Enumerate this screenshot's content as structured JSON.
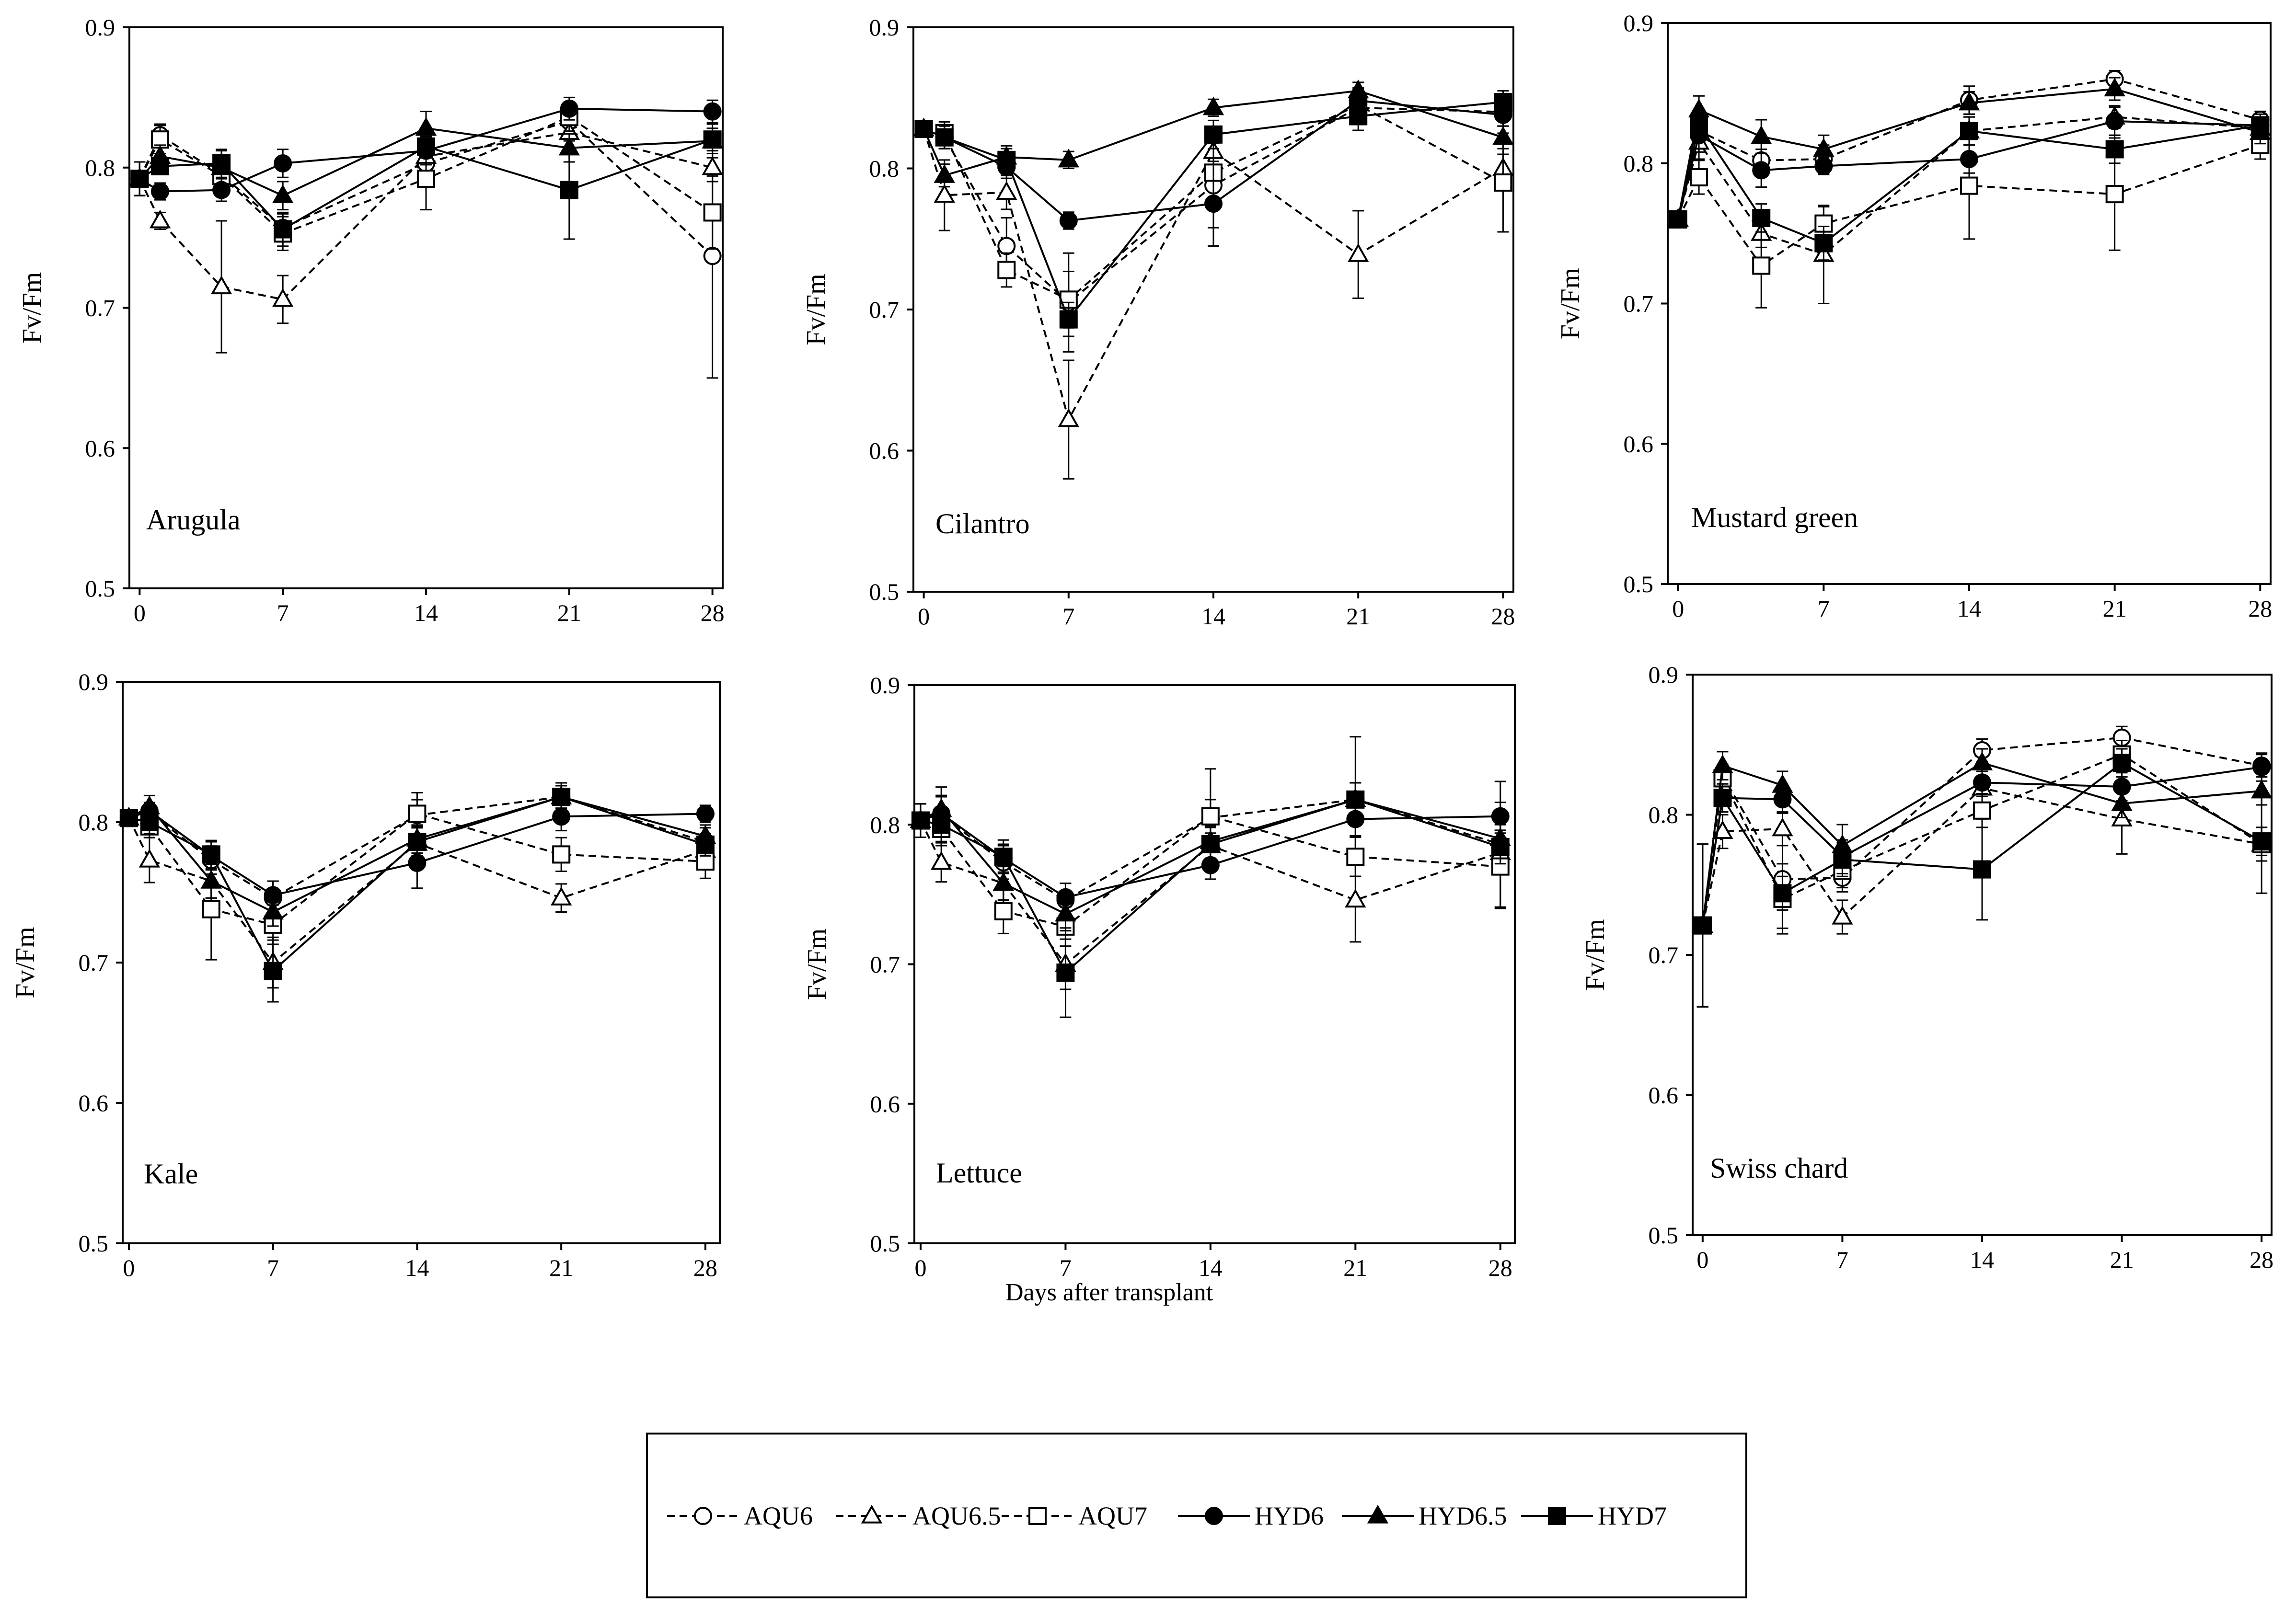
{
  "xlabel": "Days after transplant",
  "ylabel": "Fv/Fm",
  "legend": [
    {
      "name": "AQU6",
      "marker": "circle",
      "fill": "open",
      "dash": "dashed"
    },
    {
      "name": "AQU6.5",
      "marker": "triangle",
      "fill": "open",
      "dash": "dashed"
    },
    {
      "name": "AQU7",
      "marker": "square",
      "fill": "open",
      "dash": "dashed"
    },
    {
      "name": "HYD6",
      "marker": "circle",
      "fill": "solid",
      "dash": "solid"
    },
    {
      "name": "HYD6.5",
      "marker": "triangle",
      "fill": "solid",
      "dash": "solid"
    },
    {
      "name": "HYD7",
      "marker": "square",
      "fill": "solid",
      "dash": "solid"
    }
  ],
  "chart_data": [
    {
      "type": "line",
      "label": "Arugula",
      "x": [
        0,
        1,
        4,
        7,
        14,
        21,
        28
      ],
      "xticks": [
        0,
        7,
        14,
        21,
        28
      ],
      "xlim": [
        -0.5,
        28.5
      ],
      "yticks": [
        0.5,
        0.6,
        0.7,
        0.8,
        0.9
      ],
      "ylim": [
        0.5,
        0.9
      ],
      "series": [
        {
          "name": "AQU6",
          "values": [
            0.792,
            0.823,
            0.795,
            0.757,
            0.803,
            0.833,
            0.737
          ],
          "errors": [
            0.012,
            0.008,
            0.012,
            0.01,
            0.012,
            0.01,
            0.087
          ]
        },
        {
          "name": "AQU6.5",
          "values": [
            0.792,
            0.762,
            0.715,
            0.706,
            0.808,
            0.825,
            0.8
          ],
          "errors": [
            0.012,
            0.006,
            0.047,
            0.017,
            0.012,
            0.012,
            0.01
          ]
        },
        {
          "name": "AQU7",
          "values": [
            0.792,
            0.82,
            0.794,
            0.753,
            0.792,
            0.836,
            0.768
          ],
          "errors": [
            0.012,
            0.01,
            0.01,
            0.012,
            0.022,
            0.01,
            0.026
          ]
        },
        {
          "name": "HYD6",
          "values": [
            0.792,
            0.783,
            0.784,
            0.803,
            0.812,
            0.842,
            0.84
          ],
          "errors": [
            0.012,
            0.006,
            0.008,
            0.01,
            0.01,
            0.008,
            0.008
          ]
        },
        {
          "name": "HYD6.5",
          "values": [
            0.792,
            0.808,
            0.8,
            0.78,
            0.828,
            0.814,
            0.819
          ],
          "errors": [
            0.012,
            0.008,
            0.012,
            0.01,
            0.012,
            0.01,
            0.012
          ]
        },
        {
          "name": "HYD7",
          "values": [
            0.792,
            0.801,
            0.803,
            0.756,
            0.815,
            0.784,
            0.82
          ],
          "errors": [
            0.012,
            0.006,
            0.01,
            0.012,
            0.008,
            0.035,
            0.008
          ]
        }
      ]
    },
    {
      "type": "line",
      "label": "Cilantro",
      "x": [
        0,
        1,
        4,
        7,
        14,
        21,
        28
      ],
      "xticks": [
        0,
        7,
        14,
        21,
        28
      ],
      "xlim": [
        -0.5,
        28.5
      ],
      "yticks": [
        0.5,
        0.6,
        0.7,
        0.8,
        0.9
      ],
      "ylim": [
        0.5,
        0.9
      ],
      "series": [
        {
          "name": "AQU6",
          "values": [
            0.828,
            0.822,
            0.745,
            0.705,
            0.788,
            0.843,
            0.84
          ],
          "errors": [
            0.004,
            0.008,
            0.02,
            0.035,
            0.03,
            0.008,
            0.01
          ]
        },
        {
          "name": "AQU6.5",
          "values": [
            0.828,
            0.781,
            0.783,
            0.622,
            0.812,
            0.739,
            0.8
          ],
          "errors": [
            0.004,
            0.025,
            0.012,
            0.042,
            0.012,
            0.031,
            0.01
          ]
        },
        {
          "name": "AQU7",
          "values": [
            0.828,
            0.825,
            0.728,
            0.707,
            0.797,
            0.845,
            0.79
          ],
          "errors": [
            0.004,
            0.008,
            0.012,
            0.02,
            0.025,
            0.012,
            0.035
          ]
        },
        {
          "name": "HYD6",
          "values": [
            0.828,
            0.822,
            0.801,
            0.763,
            0.775,
            0.848,
            0.838
          ],
          "errors": [
            0.004,
            0.008,
            0.008,
            0.006,
            0.03,
            0.008,
            0.008
          ]
        },
        {
          "name": "HYD6.5",
          "values": [
            0.828,
            0.795,
            0.808,
            0.806,
            0.843,
            0.855,
            0.822
          ],
          "errors": [
            0.004,
            0.008,
            0.006,
            0.006,
            0.006,
            0.006,
            0.008
          ]
        },
        {
          "name": "HYD7",
          "values": [
            0.828,
            0.822,
            0.806,
            0.693,
            0.824,
            0.837,
            0.847
          ],
          "errors": [
            0.004,
            0.008,
            0.01,
            0.012,
            0.01,
            0.01,
            0.008
          ]
        }
      ]
    },
    {
      "type": "line",
      "label": "Mustard green",
      "x": [
        0,
        1,
        4,
        7,
        14,
        21,
        28
      ],
      "xticks": [
        0,
        7,
        14,
        21,
        28
      ],
      "xlim": [
        -0.5,
        28.5
      ],
      "yticks": [
        0.5,
        0.6,
        0.7,
        0.8,
        0.9
      ],
      "ylim": [
        0.5,
        0.9
      ],
      "series": [
        {
          "name": "AQU6",
          "values": [
            0.76,
            0.823,
            0.802,
            0.803,
            0.845,
            0.86,
            0.831
          ],
          "errors": [
            0.005,
            0.012,
            0.008,
            0.01,
            0.01,
            0.006,
            0.006
          ]
        },
        {
          "name": "AQU6.5",
          "values": [
            0.76,
            0.815,
            0.75,
            0.735,
            0.823,
            0.833,
            0.825
          ],
          "errors": [
            0.005,
            0.012,
            0.01,
            0.035,
            0.01,
            0.008,
            0.008
          ]
        },
        {
          "name": "AQU7",
          "values": [
            0.76,
            0.79,
            0.727,
            0.757,
            0.784,
            0.778,
            0.813
          ],
          "errors": [
            0.005,
            0.012,
            0.03,
            0.012,
            0.038,
            0.04,
            0.01
          ]
        },
        {
          "name": "HYD6",
          "values": [
            0.76,
            0.82,
            0.795,
            0.798,
            0.803,
            0.83,
            0.827
          ],
          "errors": [
            0.005,
            0.012,
            0.012,
            0.006,
            0.01,
            0.01,
            0.006
          ]
        },
        {
          "name": "HYD6.5",
          "values": [
            0.76,
            0.838,
            0.819,
            0.81,
            0.843,
            0.853,
            0.822
          ],
          "errors": [
            0.005,
            0.01,
            0.012,
            0.01,
            0.008,
            0.008,
            0.008
          ]
        },
        {
          "name": "HYD7",
          "values": [
            0.76,
            0.828,
            0.761,
            0.743,
            0.823,
            0.81,
            0.827
          ],
          "errors": [
            0.005,
            0.01,
            0.01,
            0.012,
            0.01,
            0.01,
            0.008
          ]
        }
      ]
    },
    {
      "type": "line",
      "label": "Kale",
      "x": [
        0,
        1,
        4,
        7,
        14,
        21,
        28
      ],
      "xticks": [
        0,
        7,
        14,
        21,
        28
      ],
      "xlim": [
        -0.3,
        28.7
      ],
      "yticks": [
        0.5,
        0.6,
        0.7,
        0.8,
        0.9
      ],
      "ylim": [
        0.5,
        0.9
      ],
      "series": [
        {
          "name": "AQU6",
          "values": [
            0.803,
            0.807,
            0.773,
            0.746,
            0.805,
            0.818,
            0.786
          ],
          "errors": [
            0.004,
            0.006,
            0.01,
            0.012,
            0.016,
            0.01,
            0.01
          ]
        },
        {
          "name": "AQU6.5",
          "values": [
            0.803,
            0.773,
            0.758,
            0.7,
            0.785,
            0.746,
            0.78
          ],
          "errors": [
            0.004,
            0.016,
            0.012,
            0.018,
            0.012,
            0.01,
            0.008
          ]
        },
        {
          "name": "AQU7",
          "values": [
            0.803,
            0.797,
            0.738,
            0.727,
            0.806,
            0.777,
            0.772
          ],
          "errors": [
            0.004,
            0.008,
            0.036,
            0.014,
            0.01,
            0.012,
            0.012
          ]
        },
        {
          "name": "HYD6",
          "values": [
            0.803,
            0.808,
            0.776,
            0.748,
            0.771,
            0.804,
            0.806
          ],
          "errors": [
            0.004,
            0.006,
            0.01,
            0.01,
            0.018,
            0.01,
            0.006
          ]
        },
        {
          "name": "HYD6.5",
          "values": [
            0.803,
            0.811,
            0.758,
            0.736,
            0.788,
            0.818,
            0.79
          ],
          "errors": [
            0.004,
            0.008,
            0.012,
            0.01,
            0.01,
            0.008,
            0.008
          ]
        },
        {
          "name": "HYD7",
          "values": [
            0.803,
            0.8,
            0.777,
            0.694,
            0.786,
            0.818,
            0.784
          ],
          "errors": [
            0.004,
            0.008,
            0.01,
            0.022,
            0.01,
            0.008,
            0.008
          ]
        }
      ]
    },
    {
      "type": "line",
      "label": "Lettuce",
      "x": [
        0,
        1,
        4,
        7,
        14,
        21,
        28
      ],
      "xticks": [
        0,
        7,
        14,
        21,
        28
      ],
      "xlim": [
        -0.3,
        28.7
      ],
      "yticks": [
        0.5,
        0.6,
        0.7,
        0.8,
        0.9
      ],
      "ylim": [
        0.5,
        0.9
      ],
      "series": [
        {
          "name": "AQU6",
          "values": [
            0.803,
            0.807,
            0.773,
            0.746,
            0.805,
            0.818,
            0.786
          ],
          "errors": [
            0.012,
            0.014,
            0.012,
            0.012,
            0.035,
            0.045,
            0.045
          ]
        },
        {
          "name": "AQU6.5",
          "values": [
            0.803,
            0.773,
            0.758,
            0.7,
            0.785,
            0.746,
            0.78
          ],
          "errors": [
            0.012,
            0.014,
            0.014,
            0.018,
            0.014,
            0.03,
            0.014
          ]
        },
        {
          "name": "AQU7",
          "values": [
            0.803,
            0.797,
            0.738,
            0.727,
            0.806,
            0.777,
            0.77
          ],
          "errors": [
            0.012,
            0.012,
            0.016,
            0.014,
            0.012,
            0.014,
            0.03
          ]
        },
        {
          "name": "HYD6",
          "values": [
            0.803,
            0.808,
            0.776,
            0.748,
            0.771,
            0.804,
            0.806
          ],
          "errors": [
            0.012,
            0.012,
            0.01,
            0.01,
            0.01,
            0.012,
            0.01
          ]
        },
        {
          "name": "HYD6.5",
          "values": [
            0.803,
            0.811,
            0.758,
            0.736,
            0.788,
            0.818,
            0.79
          ],
          "errors": [
            0.012,
            0.016,
            0.012,
            0.012,
            0.012,
            0.012,
            0.012
          ]
        },
        {
          "name": "HYD7",
          "values": [
            0.803,
            0.8,
            0.777,
            0.694,
            0.786,
            0.818,
            0.784
          ],
          "errors": [
            0.012,
            0.012,
            0.012,
            0.032,
            0.012,
            0.012,
            0.012
          ]
        }
      ]
    },
    {
      "type": "line",
      "label": "Swiss chard",
      "x": [
        0,
        1,
        4,
        7,
        14,
        21,
        28
      ],
      "xticks": [
        0,
        7,
        14,
        21,
        28
      ],
      "xlim": [
        -0.5,
        28.5
      ],
      "yticks": [
        0.5,
        0.6,
        0.7,
        0.8,
        0.9
      ],
      "ylim": [
        0.5,
        0.9
      ],
      "series": [
        {
          "name": "AQU6",
          "values": [
            0.721,
            0.828,
            0.754,
            0.755,
            0.846,
            0.855,
            0.835
          ],
          "errors": [
            0.058,
            0.008,
            0.035,
            0.01,
            0.008,
            0.008,
            0.008
          ]
        },
        {
          "name": "AQU6.5",
          "values": [
            0.721,
            0.788,
            0.79,
            0.727,
            0.819,
            0.797,
            0.779
          ],
          "errors": [
            0.058,
            0.012,
            0.012,
            0.012,
            0.012,
            0.025,
            0.035
          ]
        },
        {
          "name": "AQU7",
          "values": [
            0.721,
            0.826,
            0.74,
            0.76,
            0.803,
            0.843,
            0.779
          ],
          "errors": [
            0.058,
            0.01,
            0.025,
            0.012,
            0.012,
            0.01,
            0.012
          ]
        },
        {
          "name": "HYD6",
          "values": [
            0.721,
            0.812,
            0.811,
            0.77,
            0.823,
            0.82,
            0.834
          ],
          "errors": [
            0.058,
            0.01,
            0.01,
            0.012,
            0.01,
            0.01,
            0.01
          ]
        },
        {
          "name": "HYD6.5",
          "values": [
            0.721,
            0.835,
            0.821,
            0.778,
            0.837,
            0.808,
            0.817
          ],
          "errors": [
            0.058,
            0.01,
            0.01,
            0.015,
            0.01,
            0.01,
            0.01
          ]
        },
        {
          "name": "HYD7",
          "values": [
            0.721,
            0.812,
            0.744,
            0.768,
            0.761,
            0.837,
            0.781
          ],
          "errors": [
            0.058,
            0.01,
            0.012,
            0.012,
            0.036,
            0.01,
            0.01
          ]
        }
      ]
    }
  ]
}
